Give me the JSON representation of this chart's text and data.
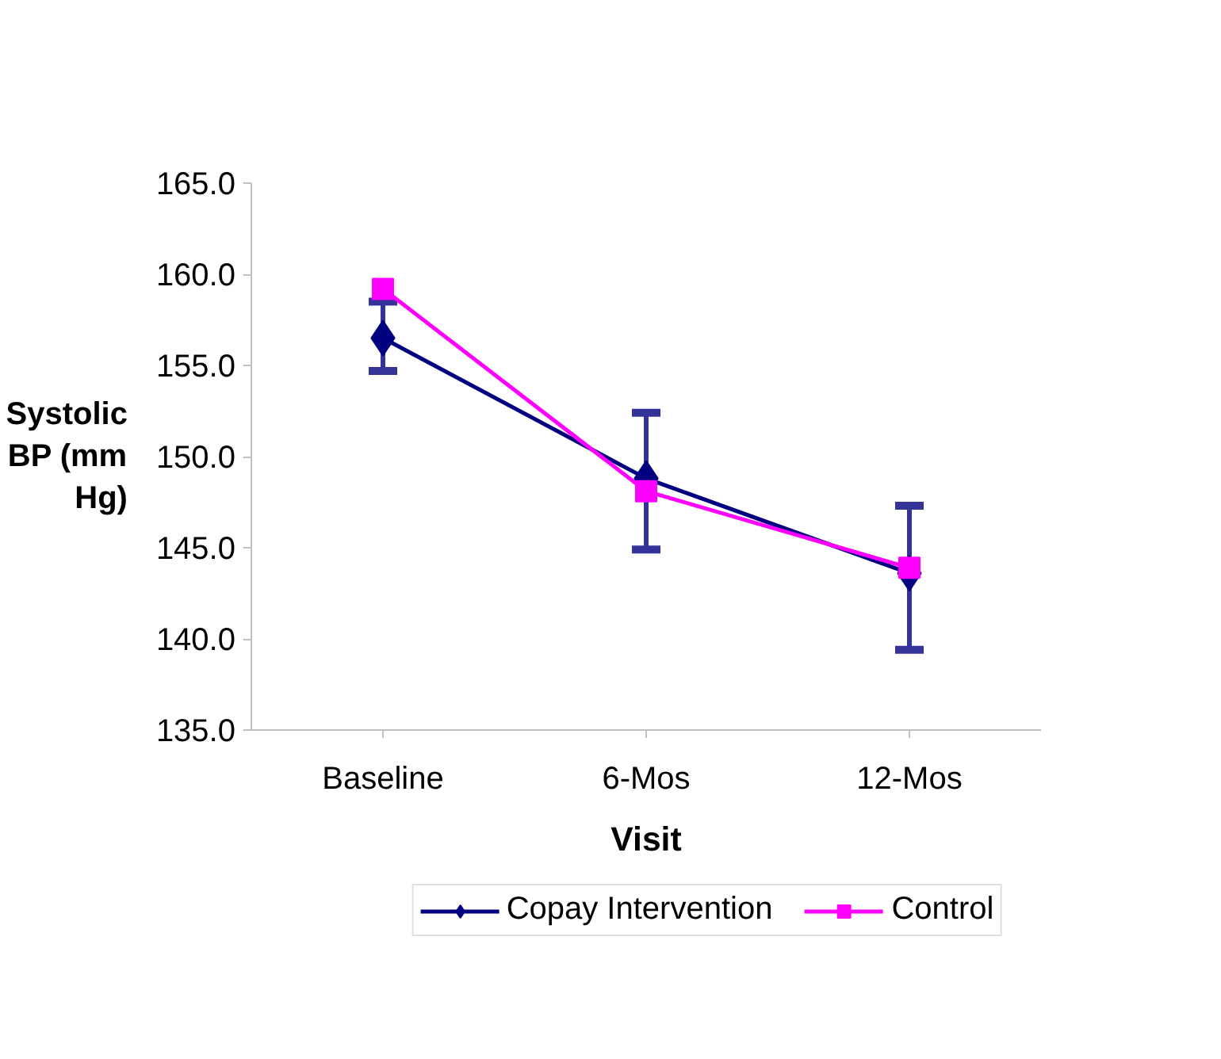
{
  "chart_data": {
    "type": "line",
    "xlabel": "Visit",
    "ylabel": "Systolic BP (mm Hg)",
    "categories": [
      "Baseline",
      "6-Mos",
      "12-Mos"
    ],
    "series": [
      {
        "name": "Copay Intervention",
        "color": "#000080",
        "marker": "diamond",
        "values": [
          156.5,
          148.8,
          143.6
        ],
        "errors": [
          [
            154.7,
            158.5
          ],
          [
            144.9,
            152.4
          ],
          [
            139.4,
            147.3
          ]
        ]
      },
      {
        "name": "Control",
        "color": "#ff00ff",
        "marker": "square",
        "values": [
          159.2,
          148.1,
          143.9
        ]
      }
    ],
    "ylim": [
      135,
      165
    ],
    "yticks": [
      {
        "value": 135,
        "label": "135.0"
      },
      {
        "value": 140,
        "label": "140.0"
      },
      {
        "value": 145,
        "label": "145.0"
      },
      {
        "value": 150,
        "label": "150.0"
      },
      {
        "value": 155,
        "label": "155.0"
      },
      {
        "value": 160,
        "label": "160.0"
      },
      {
        "value": 165,
        "label": "165.0"
      }
    ],
    "grid": false,
    "legend": "bottom",
    "line_style": "solid"
  }
}
